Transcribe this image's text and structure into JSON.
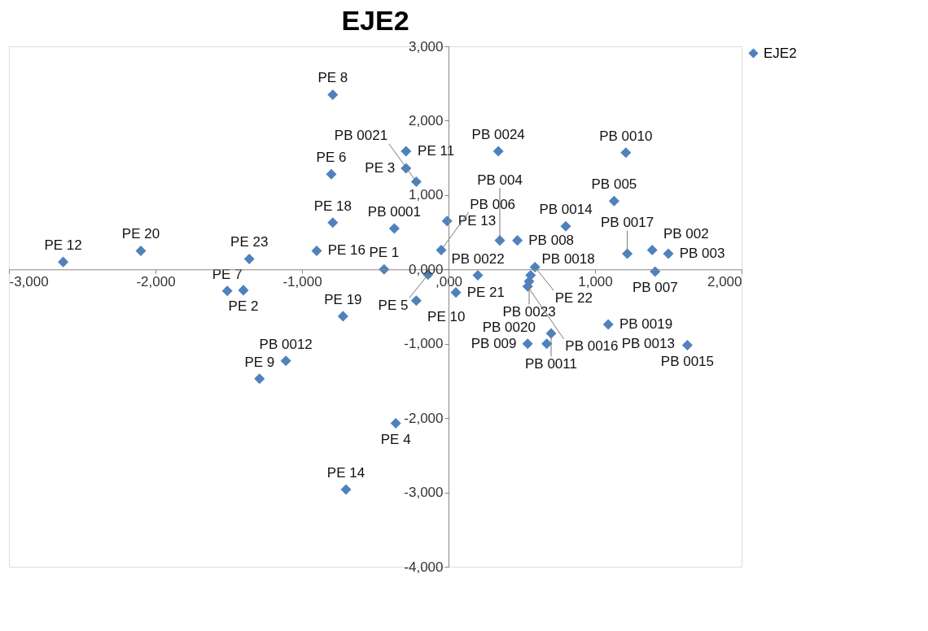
{
  "chart_data": {
    "type": "scatter",
    "title": "EJE2",
    "x": [
      -2630,
      -2100,
      -1360,
      -1400,
      -1510,
      -1290,
      -1110,
      -720,
      -700,
      -360,
      -900,
      -790,
      -800,
      -790,
      -290,
      -290,
      -220,
      -370,
      -440,
      -10,
      -50,
      -140,
      -220,
      50,
      200,
      340,
      1210,
      1130,
      800,
      350,
      470,
      590,
      560,
      550,
      540,
      700,
      540,
      670,
      1090,
      1220,
      1390,
      1500,
      1410,
      1620,
      1630
    ],
    "series": [
      {
        "name": "EJE2",
        "color": "#4f81bd",
        "values": [
          100,
          250,
          140,
          -280,
          -290,
          -1470,
          -1230,
          -630,
          -2960,
          -2070,
          250,
          630,
          1280,
          2350,
          1590,
          1360,
          1180,
          550,
          0,
          650,
          260,
          -70,
          -420,
          -310,
          -80,
          1590,
          1570,
          920,
          580,
          390,
          390,
          30,
          -80,
          -160,
          -230,
          -860,
          -1000,
          -1000,
          -740,
          210,
          260,
          210,
          -30,
          null,
          -1020
        ]
      }
    ],
    "annotations": [
      {
        "text": "PE 12",
        "x": -2630,
        "y": 100
      },
      {
        "text": "PE 20",
        "x": -2100,
        "y": 250
      },
      {
        "text": "PE 23",
        "x": -1360,
        "y": 140
      },
      {
        "text": "PE 2",
        "x": -1400,
        "y": -280
      },
      {
        "text": "PE 7",
        "x": -1510,
        "y": -290
      },
      {
        "text": "PE 9",
        "x": -1290,
        "y": -1470
      },
      {
        "text": "PB 0012",
        "x": -1110,
        "y": -1230
      },
      {
        "text": "PE 19",
        "x": -720,
        "y": -630
      },
      {
        "text": "PE 14",
        "x": -700,
        "y": -2960
      },
      {
        "text": "PE 4",
        "x": -360,
        "y": -2070
      },
      {
        "text": "PE 16",
        "x": -900,
        "y": 250
      },
      {
        "text": "PE 18",
        "x": -790,
        "y": 630
      },
      {
        "text": "PE 6",
        "x": -800,
        "y": 1280
      },
      {
        "text": "PE 8",
        "x": -790,
        "y": 2350
      },
      {
        "text": "PE 11",
        "x": -290,
        "y": 1590
      },
      {
        "text": "PE 3",
        "x": -290,
        "y": 1360
      },
      {
        "text": "PB 0021",
        "x": -220,
        "y": 1180
      },
      {
        "text": "PB 0001",
        "x": -370,
        "y": 550
      },
      {
        "text": "PE 1",
        "x": -440,
        "y": 0
      },
      {
        "text": "PE 13",
        "x": -10,
        "y": 650
      },
      {
        "text": "PB 006",
        "x": -50,
        "y": 260
      },
      {
        "text": "PE 5",
        "x": -140,
        "y": -70
      },
      {
        "text": "PE 10",
        "x": -220,
        "y": -420
      },
      {
        "text": "PE 21",
        "x": 50,
        "y": -310
      },
      {
        "text": "PB 0022",
        "x": 200,
        "y": -80
      },
      {
        "text": "PB 0024",
        "x": 340,
        "y": 1590
      },
      {
        "text": "PB 0010",
        "x": 1210,
        "y": 1570
      },
      {
        "text": "PB 005",
        "x": 1130,
        "y": 920
      },
      {
        "text": "PB 0014",
        "x": 800,
        "y": 580
      },
      {
        "text": "PB 004",
        "x": 350,
        "y": 390
      },
      {
        "text": "PB 008",
        "x": 470,
        "y": 390
      },
      {
        "text": "PE 22",
        "x": 590,
        "y": 30
      },
      {
        "text": "PB 0018",
        "x": 560,
        "y": -80
      },
      {
        "text": "PB 0023",
        "x": 550,
        "y": -160
      },
      {
        "text": "PB 0016",
        "x": 540,
        "y": -230
      },
      {
        "text": "PB 0011",
        "x": 700,
        "y": -860
      },
      {
        "text": "PB 009",
        "x": 540,
        "y": -1000
      },
      {
        "text": "PB 0020",
        "x": 670,
        "y": -1000
      },
      {
        "text": "PB 0019",
        "x": 1090,
        "y": -740
      },
      {
        "text": "PB 0017",
        "x": 1220,
        "y": 210
      },
      {
        "text": "PB 002",
        "x": 1390,
        "y": 260
      },
      {
        "text": "PB 003",
        "x": 1500,
        "y": 210
      },
      {
        "text": "PB 007",
        "x": 1410,
        "y": -30
      },
      {
        "text": "PB 0013",
        "x": 1620,
        "y": -1000
      },
      {
        "text": "PB 0015",
        "x": 1630,
        "y": -1020
      }
    ],
    "xlim": [
      -3000,
      2000
    ],
    "xticks": [
      {
        "value": -3000,
        "label": "-3,000"
      },
      {
        "value": -2000,
        "label": "-2,000"
      },
      {
        "value": -1000,
        "label": "-1,000"
      },
      {
        "value": 0,
        "label": ",000"
      },
      {
        "value": 1000,
        "label": "1,000"
      },
      {
        "value": 2000,
        "label": "2,000"
      }
    ],
    "ylim": [
      -4000,
      3000
    ],
    "yticks": [
      {
        "value": -4000,
        "label": "-4,000"
      },
      {
        "value": -3000,
        "label": "-3,000"
      },
      {
        "value": -2000,
        "label": "-2,000"
      },
      {
        "value": -1000,
        "label": "-1,000"
      },
      {
        "value": 0,
        "label": "0,000"
      },
      {
        "value": 1000,
        "label": "1,000"
      },
      {
        "value": 2000,
        "label": "2,000"
      },
      {
        "value": 3000,
        "label": "3,000"
      }
    ],
    "grid": false,
    "legend": "right",
    "marker": "diamond"
  }
}
